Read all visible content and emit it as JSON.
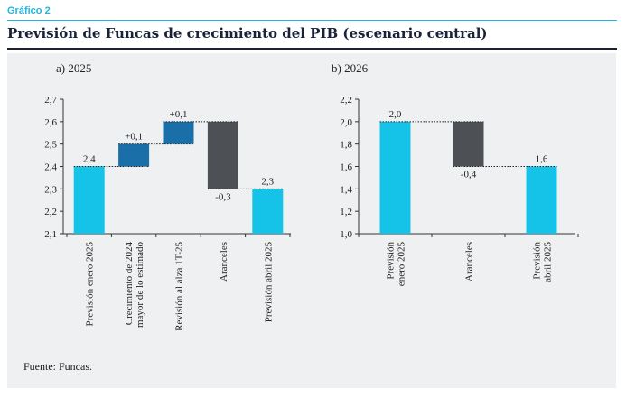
{
  "header": {
    "label": "Gráfico 2",
    "title": "Previsión de Funcas de crecimiento del PIB (escenario central)"
  },
  "source": "Fuente: Funcas.",
  "colors": {
    "cyan": "#15c3e8",
    "blue": "#1a6fa8",
    "gray": "#4d5054",
    "accent": "#1fb7e0"
  },
  "chart_data": [
    {
      "type": "waterfall",
      "title": "a) 2025",
      "ylim": [
        2.1,
        2.7
      ],
      "yticks": [
        "2,1",
        "2,2",
        "2,3",
        "2,4",
        "2,5",
        "2,6",
        "2,7"
      ],
      "categories": [
        [
          "Previsión enero 2025"
        ],
        [
          "Crecimiento de 2024",
          "mayor de lo estimado"
        ],
        [
          "Revisión al alza 1T-25"
        ],
        [
          "Aranceles"
        ],
        [
          "Previsión abril 2025"
        ]
      ],
      "bars": [
        {
          "base": 2.1,
          "top": 2.4,
          "value": 2.4,
          "label": "2,4",
          "color": "cyan"
        },
        {
          "base": 2.4,
          "top": 2.5,
          "value": 0.1,
          "label": "+0,1",
          "color": "blue"
        },
        {
          "base": 2.5,
          "top": 2.6,
          "value": 0.1,
          "label": "+0,1",
          "color": "blue"
        },
        {
          "base": 2.3,
          "top": 2.6,
          "value": -0.3,
          "label": "-0,3",
          "color": "gray"
        },
        {
          "base": 2.1,
          "top": 2.3,
          "value": 2.3,
          "label": "2,3",
          "color": "cyan"
        }
      ]
    },
    {
      "type": "waterfall",
      "title": "b) 2026",
      "ylim": [
        1.0,
        2.2
      ],
      "yticks": [
        "1,0",
        "1,2",
        "1,4",
        "1,6",
        "1,8",
        "2,0",
        "2,2"
      ],
      "categories": [
        [
          "Previsión",
          "enero 2025"
        ],
        [
          "Aranceles"
        ],
        [
          "Previsión",
          "abril 2025"
        ]
      ],
      "bars": [
        {
          "base": 1.0,
          "top": 2.0,
          "value": 2.0,
          "label": "2,0",
          "color": "cyan"
        },
        {
          "base": 1.6,
          "top": 2.0,
          "value": -0.4,
          "label": "-0,4",
          "color": "gray"
        },
        {
          "base": 1.0,
          "top": 1.6,
          "value": 1.6,
          "label": "1,6",
          "color": "cyan"
        }
      ]
    }
  ]
}
